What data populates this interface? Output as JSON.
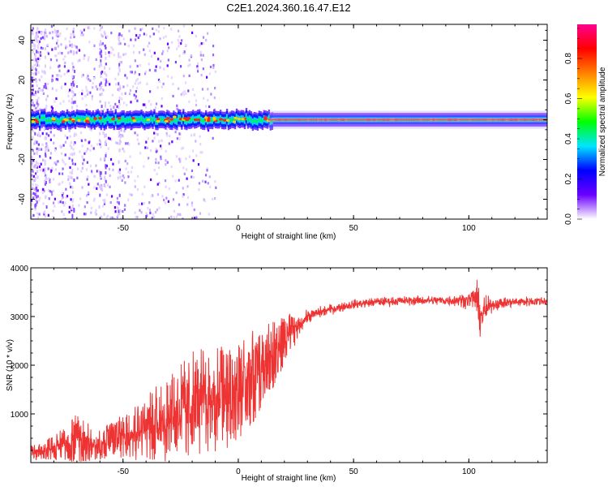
{
  "figure": {
    "title": "C2E1.2024.360.16.47.E12"
  },
  "chart_data": [
    {
      "type": "heatmap",
      "name": "spectrogram",
      "xlabel": "Height of straight line (km)",
      "ylabel": "Frequency (Hz)",
      "xlim": [
        -90,
        134
      ],
      "ylim": [
        -50,
        48
      ],
      "xticks": [
        -50,
        0,
        50,
        100
      ],
      "yticks": [
        -40,
        -20,
        0,
        20,
        40
      ],
      "xtick_labels": [
        "-50",
        "0",
        "50",
        "100"
      ],
      "ytick_labels": [
        "-40",
        "-20",
        "0",
        "20",
        "40"
      ],
      "colorbar": {
        "label": "Normalized spectral amplitude",
        "range": [
          0,
          0.97
        ],
        "ticks": [
          0.0,
          0.2,
          0.4,
          0.6,
          0.8
        ],
        "tick_labels": [
          "0.0",
          "0.2",
          "0.4",
          "0.6",
          "0.8"
        ],
        "colors": [
          "#ffffff",
          "#6a00ff",
          "#0000ff",
          "#00e5ff",
          "#00ff00",
          "#ffff00",
          "#ff8000",
          "#ff0000",
          "#ff0090"
        ]
      },
      "band_center_hz": 0,
      "band_halfwidth_hz": [
        3,
        2
      ]
    },
    {
      "type": "line",
      "name": "snr",
      "xlabel": "Height of straight line (km)",
      "ylabel": "SNR (10 * v/v)",
      "xlim": [
        -90,
        134
      ],
      "ylim": [
        0,
        4000
      ],
      "xticks": [
        -50,
        0,
        50,
        100
      ],
      "yticks": [
        1000,
        2000,
        3000,
        4000
      ],
      "xtick_labels": [
        "-50",
        "0",
        "50",
        "100"
      ],
      "ytick_labels": [
        "1000",
        "2000",
        "3000",
        "4000"
      ],
      "color": "#ee3333",
      "envelope": {
        "x": [
          -90,
          -80,
          -70,
          -60,
          -50,
          -40,
          -30,
          -20,
          -10,
          0,
          10,
          20,
          30,
          40,
          50,
          60,
          70,
          80,
          90,
          100,
          103,
          105,
          110,
          120,
          134
        ],
        "mean": [
          200,
          300,
          500,
          350,
          600,
          700,
          900,
          1200,
          1300,
          1500,
          1900,
          2500,
          3000,
          3150,
          3250,
          3300,
          3320,
          3330,
          3330,
          3340,
          3400,
          3000,
          3250,
          3300,
          3320
        ],
        "spread": [
          150,
          250,
          500,
          300,
          500,
          700,
          900,
          1100,
          1100,
          1100,
          900,
          500,
          250,
          200,
          180,
          180,
          180,
          180,
          200,
          300,
          650,
          800,
          250,
          200,
          180
        ]
      }
    }
  ]
}
